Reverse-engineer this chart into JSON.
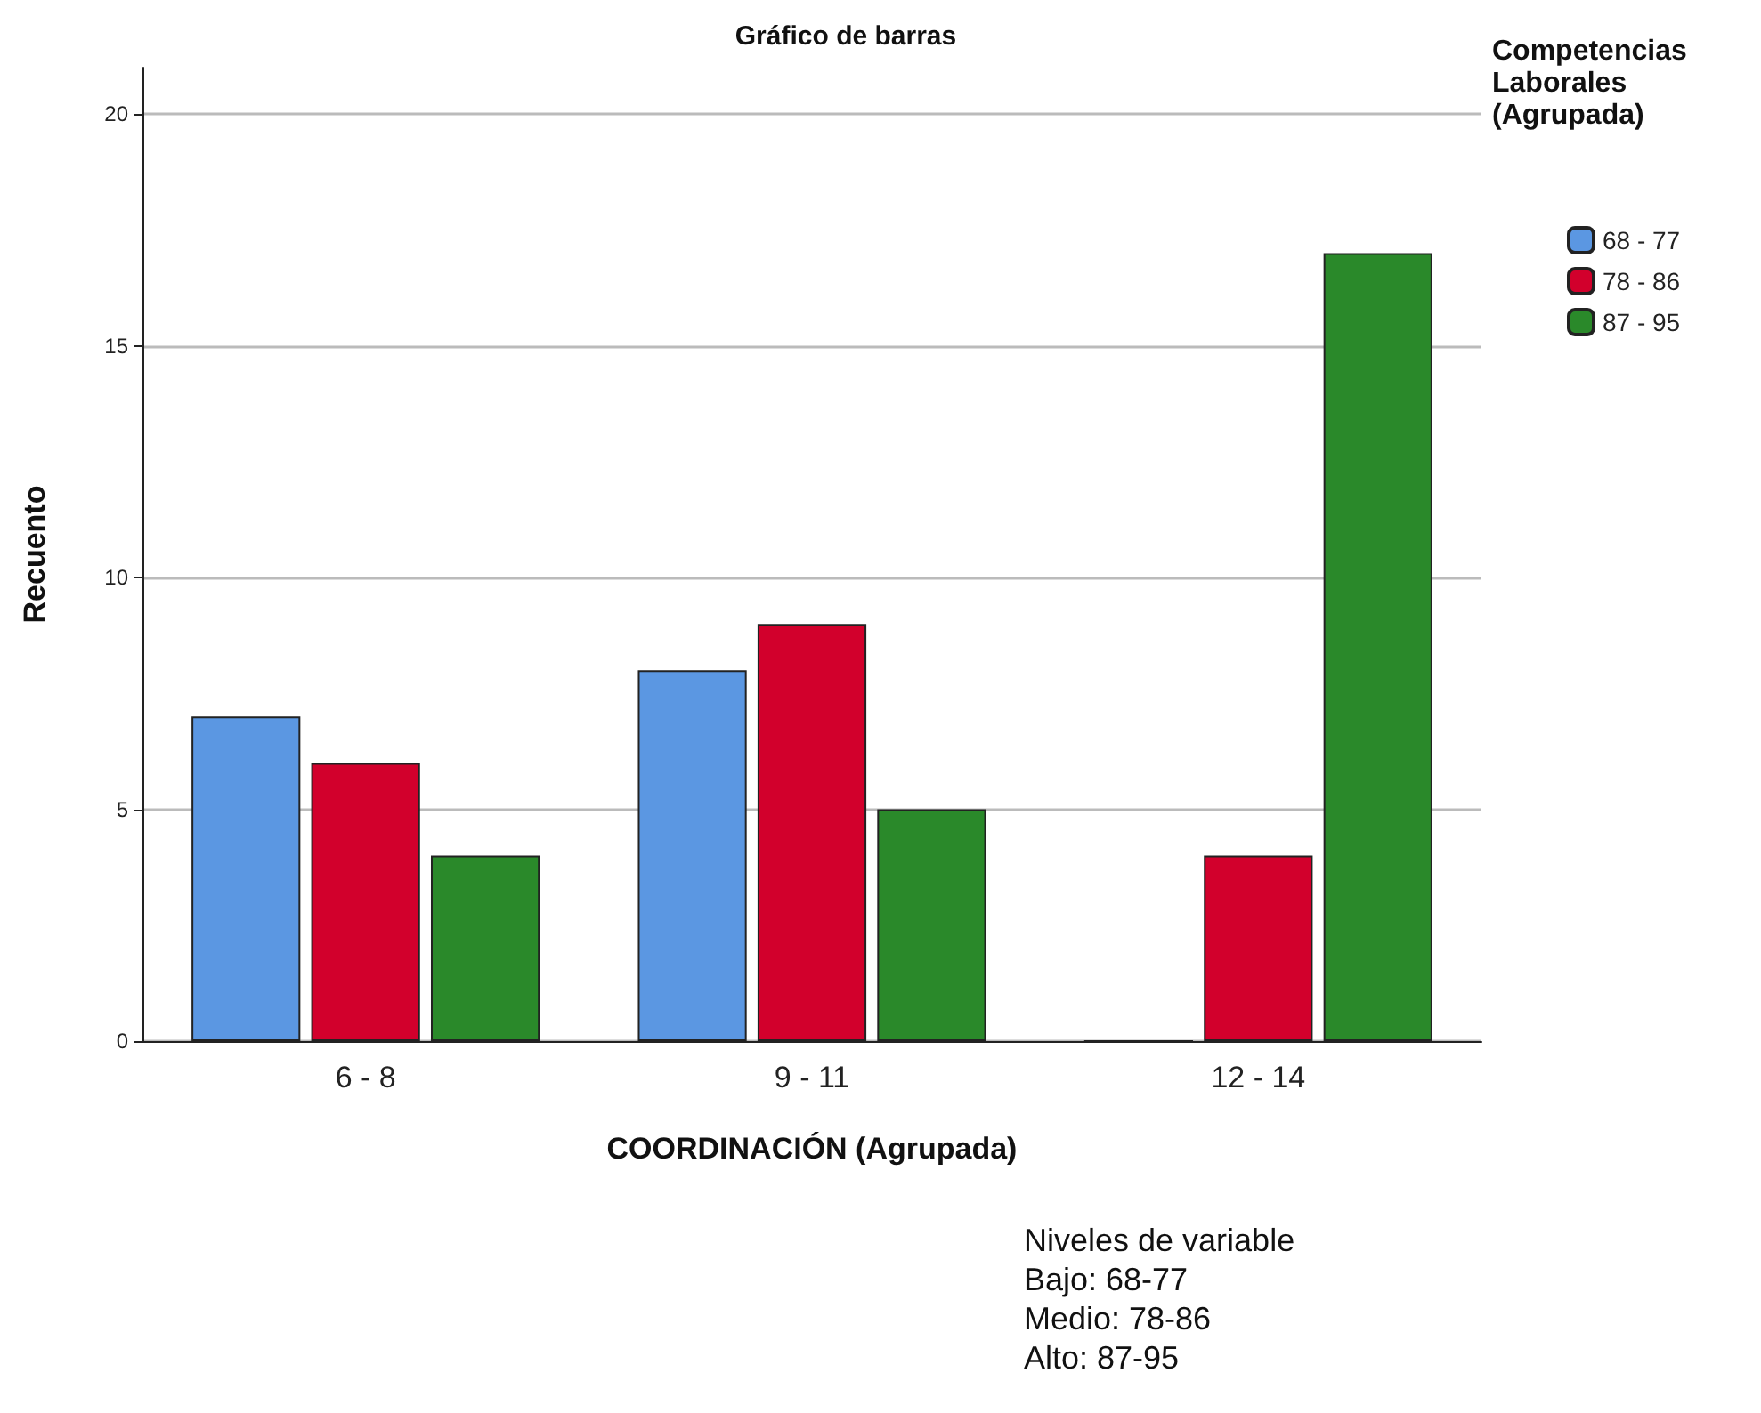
{
  "chart_data": {
    "type": "bar",
    "title": "Gráfico de barras",
    "xlabel": "COORDINACIÓN (Agrupada)",
    "ylabel": "Recuento",
    "legend_title": "Competencias Laborales (Agrupada)",
    "categories": [
      "6 - 8",
      "9 - 11",
      "12 - 14"
    ],
    "series": [
      {
        "name": "68 - 77",
        "color": "#5b97e2",
        "values": [
          7,
          8,
          0
        ]
      },
      {
        "name": "78 - 86",
        "color": "#d2002c",
        "values": [
          6,
          9,
          4
        ]
      },
      {
        "name": "87 - 95",
        "color": "#2a892a",
        "values": [
          4,
          5,
          17
        ]
      }
    ],
    "ylim": [
      0,
      21
    ],
    "yticks": [
      0,
      5,
      10,
      15,
      20
    ],
    "grid": "y",
    "legend": "right",
    "annotations": [
      "Niveles de variable",
      "Bajo: 68-77",
      "Medio: 78-86",
      "Alto: 87-95"
    ]
  }
}
